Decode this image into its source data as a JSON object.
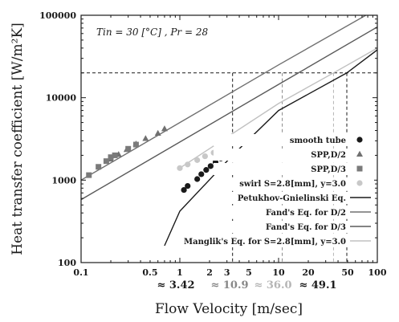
{
  "chart_data": {
    "type": "scatter",
    "title": "",
    "annotation": "Tin = 30 [°C] , Pr = 28",
    "annotation_sub": "in",
    "xlabel": "Flow Velocity [m/sec]",
    "ylabel": "Heat transfer coefficient [W/m²K]",
    "x_scale": "log",
    "y_scale": "log",
    "xlim": [
      0.1,
      100
    ],
    "ylim": [
      100,
      100000
    ],
    "grid": false,
    "legend_position": "right",
    "x_tick_labels": [
      {
        "value": 0.1,
        "label": "0.1"
      },
      {
        "value": 0.5,
        "label": "0.5"
      },
      {
        "value": 1,
        "label": "1"
      },
      {
        "value": 2,
        "label": "2"
      },
      {
        "value": 3,
        "label": "3"
      },
      {
        "value": 5,
        "label": "5"
      },
      {
        "value": 10,
        "label": "10"
      },
      {
        "value": 20,
        "label": "20"
      },
      {
        "value": 50,
        "label": "50"
      },
      {
        "value": 100,
        "label": "100"
      }
    ],
    "y_tick_labels": [
      {
        "value": 100,
        "label": "100"
      },
      {
        "value": 1000,
        "label": "1000"
      },
      {
        "value": 10000,
        "label": "10000"
      },
      {
        "value": 100000,
        "label": "100000"
      }
    ],
    "reference_line": {
      "y": 20000
    },
    "reference_verticals": [
      {
        "x": 3.42,
        "label": "≈ 3.42",
        "color": "#1a1a1a"
      },
      {
        "x": 10.9,
        "label": "≈ 10.9",
        "color": "#888888"
      },
      {
        "x": 36.0,
        "label": "≈ 36.0",
        "color": "#b5b5b5"
      },
      {
        "x": 49.1,
        "label": "≈ 49.1",
        "color": "#1a1a1a"
      }
    ],
    "series": [
      {
        "name": "smooth tube",
        "kind": "marker",
        "marker": "circle",
        "color": "#1a1a1a",
        "x": [
          1.1,
          1.2,
          1.5,
          1.65,
          1.85,
          2.05,
          2.3,
          2.6
        ],
        "y": [
          760,
          850,
          1030,
          1180,
          1330,
          1480,
          1650,
          1830
        ]
      },
      {
        "name": "SPP,D/2",
        "kind": "marker",
        "marker": "triangle",
        "color": "#707070",
        "x": [
          0.2,
          0.24,
          0.29,
          0.36,
          0.45,
          0.6,
          0.7
        ],
        "y": [
          1800,
          2050,
          2350,
          2750,
          3200,
          3700,
          4200
        ]
      },
      {
        "name": "SPP,D/3",
        "kind": "marker",
        "marker": "square",
        "color": "#7a7a7a",
        "x": [
          0.12,
          0.15,
          0.18,
          0.2,
          0.22,
          0.3,
          0.36
        ],
        "y": [
          1150,
          1450,
          1700,
          1900,
          2000,
          2400,
          2700
        ]
      },
      {
        "name": "swirl S=2.8[mm], y=3.0",
        "kind": "marker",
        "marker": "circle",
        "color": "#c8c8c8",
        "x": [
          1.0,
          1.2,
          1.5,
          1.8,
          2.2
        ],
        "y": [
          1400,
          1550,
          1750,
          1950,
          2150
        ]
      },
      {
        "name": "Petukhov-Gnielinski Eq.",
        "kind": "line",
        "color": "#1a1a1a",
        "x": [
          0.7,
          1,
          3.42,
          10,
          49.1,
          100
        ],
        "y": [
          160,
          420,
          2000,
          7000,
          20000,
          38000
        ]
      },
      {
        "name": "Fand's Eq. for D/2",
        "kind": "line",
        "color": "#707070",
        "x": [
          0.1,
          1,
          10,
          100
        ],
        "y": [
          1000,
          5000,
          25000,
          120000
        ]
      },
      {
        "name": "Fand's Eq. for D/3",
        "kind": "line",
        "color": "#5a5a5a",
        "x": [
          0.1,
          1,
          10,
          100
        ],
        "y": [
          580,
          2900,
          14500,
          72000
        ]
      },
      {
        "name": "Manglik's Eq. for S=2.8[mm], y=3.0",
        "kind": "line",
        "color": "#c0c0c0",
        "x": [
          1,
          10,
          36,
          100
        ],
        "y": [
          1400,
          8500,
          20000,
          40000
        ]
      }
    ]
  }
}
